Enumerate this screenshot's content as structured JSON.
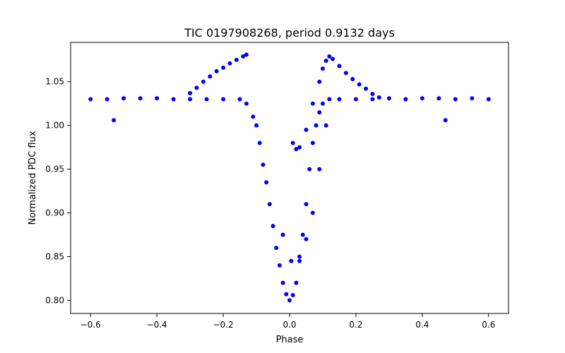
{
  "chart_data": {
    "type": "scatter",
    "title": "TIC 0197908268, period 0.9132 days",
    "xlabel": "Phase",
    "ylabel": "Normalized PDC flux",
    "xlim": [
      -0.66,
      0.66
    ],
    "ylim": [
      0.785,
      1.095
    ],
    "x_ticks": [
      -0.6,
      -0.4,
      -0.2,
      0.0,
      0.2,
      0.4,
      0.6
    ],
    "x_tick_labels": [
      "−0.6",
      "−0.4",
      "−0.2",
      "0.0",
      "0.2",
      "0.4",
      "0.6"
    ],
    "y_ticks": [
      0.8,
      0.85,
      0.9,
      0.95,
      1.0,
      1.05
    ],
    "y_tick_labels": [
      "0.80",
      "0.85",
      "0.90",
      "0.95",
      "1.00",
      "1.05"
    ],
    "grid": false,
    "legend": "none",
    "marker_color": "#0000ff",
    "series": [
      {
        "points": [
          [
            -0.6,
            1.03
          ],
          [
            -0.55,
            1.03
          ],
          [
            -0.5,
            1.031
          ],
          [
            -0.45,
            1.031
          ],
          [
            -0.4,
            1.031
          ],
          [
            -0.35,
            1.03
          ],
          [
            -0.3,
            1.03
          ],
          [
            -0.25,
            1.03
          ],
          [
            -0.2,
            1.03
          ],
          [
            -0.15,
            1.03
          ],
          [
            -0.13,
            1.025
          ],
          [
            -0.11,
            1.01
          ],
          [
            -0.1,
            1.0
          ],
          [
            -0.09,
            0.98
          ],
          [
            -0.08,
            0.955
          ],
          [
            -0.07,
            0.935
          ],
          [
            -0.06,
            0.91
          ],
          [
            -0.05,
            0.885
          ],
          [
            -0.04,
            0.86
          ],
          [
            -0.03,
            0.84
          ],
          [
            -0.02,
            0.82
          ],
          [
            -0.01,
            0.807
          ],
          [
            0.0,
            0.8
          ],
          [
            0.01,
            0.806
          ],
          [
            0.02,
            0.82
          ],
          [
            0.03,
            0.845
          ],
          [
            0.04,
            0.875
          ],
          [
            0.05,
            0.91
          ],
          [
            0.06,
            0.95
          ],
          [
            0.07,
            0.98
          ],
          [
            0.08,
            1.0
          ],
          [
            0.09,
            1.015
          ],
          [
            0.1,
            1.025
          ],
          [
            0.12,
            1.03
          ],
          [
            0.15,
            1.03
          ],
          [
            0.2,
            1.03
          ],
          [
            0.25,
            1.03
          ],
          [
            0.3,
            1.031
          ],
          [
            0.35,
            1.03
          ],
          [
            0.4,
            1.031
          ],
          [
            0.45,
            1.031
          ],
          [
            0.5,
            1.03
          ],
          [
            0.55,
            1.031
          ],
          [
            0.6,
            1.03
          ],
          [
            -0.3,
            1.037
          ],
          [
            -0.28,
            1.043
          ],
          [
            -0.26,
            1.05
          ],
          [
            -0.24,
            1.056
          ],
          [
            -0.22,
            1.062
          ],
          [
            -0.2,
            1.066
          ],
          [
            -0.18,
            1.071
          ],
          [
            -0.16,
            1.075
          ],
          [
            -0.14,
            1.079
          ],
          [
            -0.13,
            1.081
          ],
          [
            0.01,
            0.98
          ],
          [
            0.02,
            0.973
          ],
          [
            0.03,
            0.975
          ],
          [
            0.05,
            0.995
          ],
          [
            0.07,
            1.025
          ],
          [
            0.09,
            1.05
          ],
          [
            0.1,
            1.065
          ],
          [
            0.11,
            1.074
          ],
          [
            0.12,
            1.079
          ],
          [
            0.13,
            1.076
          ],
          [
            0.15,
            1.068
          ],
          [
            0.17,
            1.06
          ],
          [
            0.19,
            1.053
          ],
          [
            0.21,
            1.047
          ],
          [
            0.23,
            1.042
          ],
          [
            0.25,
            1.036
          ],
          [
            0.27,
            1.032
          ],
          [
            0.03,
            0.85
          ],
          [
            0.05,
            0.87
          ],
          [
            0.07,
            0.9
          ],
          [
            0.09,
            0.95
          ],
          [
            0.11,
            1.0
          ],
          [
            -0.53,
            1.006
          ],
          [
            0.47,
            1.006
          ],
          [
            -0.02,
            0.875
          ],
          [
            0.005,
            0.845
          ]
        ]
      }
    ]
  }
}
